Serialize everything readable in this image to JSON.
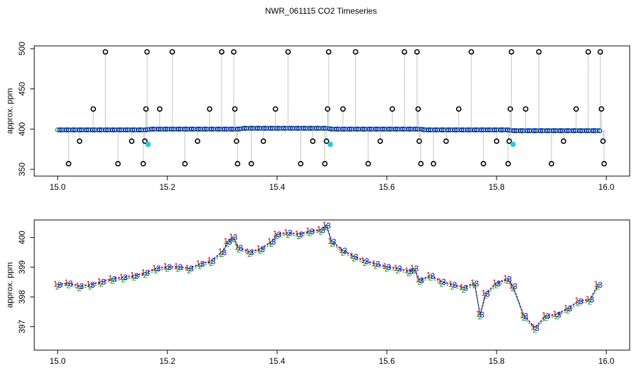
{
  "title": "NWR_061115  CO2 Timeseries",
  "colors": {
    "flag_marker": "#000000",
    "point_blue": "#0000ee",
    "point_green": "#00aa00",
    "point_red": "#cc0000",
    "point_cyan": "#22ccee",
    "connector": "#888888"
  },
  "chart_data": [
    {
      "type": "scatter",
      "ylabel": "approx. ppm",
      "xlim": [
        15.0,
        16.0
      ],
      "ylim": [
        345,
        500
      ],
      "x_ticks": [
        "15.0",
        "15.2",
        "15.4",
        "15.6",
        "15.8",
        "16.0"
      ],
      "y_ticks": [
        "350",
        "400",
        "450",
        "500"
      ],
      "baseline": {
        "x": [
          15.0,
          15.16,
          15.17,
          15.33,
          15.34,
          15.49,
          15.5,
          15.66,
          15.67,
          15.82,
          15.83,
          15.99
        ],
        "y": [
          399,
          399,
          400,
          400,
          401,
          401,
          400,
          400,
          399,
          399,
          398,
          398
        ]
      },
      "flag_points": [
        {
          "x": 15.02,
          "y": 357
        },
        {
          "x": 15.04,
          "y": 385
        },
        {
          "x": 15.065,
          "y": 425
        },
        {
          "x": 15.087,
          "y": 496
        },
        {
          "x": 15.11,
          "y": 357
        },
        {
          "x": 15.135,
          "y": 385
        },
        {
          "x": 15.156,
          "y": 357
        },
        {
          "x": 15.159,
          "y": 385
        },
        {
          "x": 15.161,
          "y": 425
        },
        {
          "x": 15.163,
          "y": 496
        },
        {
          "x": 15.186,
          "y": 425
        },
        {
          "x": 15.209,
          "y": 496
        },
        {
          "x": 15.232,
          "y": 357
        },
        {
          "x": 15.255,
          "y": 385
        },
        {
          "x": 15.277,
          "y": 425
        },
        {
          "x": 15.299,
          "y": 496
        },
        {
          "x": 15.321,
          "y": 496
        },
        {
          "x": 15.323,
          "y": 425
        },
        {
          "x": 15.326,
          "y": 385
        },
        {
          "x": 15.328,
          "y": 357
        },
        {
          "x": 15.353,
          "y": 357
        },
        {
          "x": 15.375,
          "y": 385
        },
        {
          "x": 15.397,
          "y": 425
        },
        {
          "x": 15.42,
          "y": 496
        },
        {
          "x": 15.443,
          "y": 357
        },
        {
          "x": 15.465,
          "y": 385
        },
        {
          "x": 15.487,
          "y": 357
        },
        {
          "x": 15.49,
          "y": 385
        },
        {
          "x": 15.492,
          "y": 425
        },
        {
          "x": 15.494,
          "y": 496
        },
        {
          "x": 15.52,
          "y": 425
        },
        {
          "x": 15.543,
          "y": 496
        },
        {
          "x": 15.566,
          "y": 357
        },
        {
          "x": 15.588,
          "y": 385
        },
        {
          "x": 15.61,
          "y": 425
        },
        {
          "x": 15.632,
          "y": 496
        },
        {
          "x": 15.655,
          "y": 496
        },
        {
          "x": 15.657,
          "y": 425
        },
        {
          "x": 15.659,
          "y": 385
        },
        {
          "x": 15.662,
          "y": 357
        },
        {
          "x": 15.685,
          "y": 357
        },
        {
          "x": 15.708,
          "y": 385
        },
        {
          "x": 15.731,
          "y": 425
        },
        {
          "x": 15.754,
          "y": 496
        },
        {
          "x": 15.776,
          "y": 357
        },
        {
          "x": 15.8,
          "y": 385
        },
        {
          "x": 15.821,
          "y": 357
        },
        {
          "x": 15.823,
          "y": 385
        },
        {
          "x": 15.825,
          "y": 425
        },
        {
          "x": 15.827,
          "y": 496
        },
        {
          "x": 15.853,
          "y": 425
        },
        {
          "x": 15.877,
          "y": 496
        },
        {
          "x": 15.9,
          "y": 357
        },
        {
          "x": 15.922,
          "y": 385
        },
        {
          "x": 15.945,
          "y": 425
        },
        {
          "x": 15.967,
          "y": 496
        },
        {
          "x": 15.989,
          "y": 496
        },
        {
          "x": 15.991,
          "y": 425
        },
        {
          "x": 15.994,
          "y": 385
        },
        {
          "x": 15.996,
          "y": 357
        }
      ],
      "cyan_points": [
        {
          "x": 15.165,
          "y": 381
        },
        {
          "x": 15.497,
          "y": 381
        },
        {
          "x": 15.83,
          "y": 381
        }
      ]
    },
    {
      "type": "line",
      "ylabel": "approx. ppm",
      "xlim": [
        15.0,
        16.0
      ],
      "ylim": [
        396.3,
        400.5
      ],
      "x_ticks": [
        "15.0",
        "15.2",
        "15.4",
        "15.6",
        "15.8",
        "16.0"
      ],
      "y_ticks": [
        "397",
        "398",
        "399",
        "400"
      ],
      "series": [
        {
          "name": "1",
          "color": "#cc0000"
        },
        {
          "name": "2",
          "color": "#00aa00"
        },
        {
          "name": "3",
          "color": "#0000ee"
        }
      ],
      "x": [
        15.0,
        15.02,
        15.04,
        15.06,
        15.08,
        15.1,
        15.12,
        15.14,
        15.16,
        15.18,
        15.2,
        15.22,
        15.24,
        15.26,
        15.28,
        15.3,
        15.31,
        15.32,
        15.33,
        15.35,
        15.37,
        15.39,
        15.4,
        15.42,
        15.44,
        15.46,
        15.48,
        15.49,
        15.5,
        15.52,
        15.54,
        15.56,
        15.58,
        15.6,
        15.62,
        15.64,
        15.65,
        15.66,
        15.68,
        15.7,
        15.72,
        15.74,
        15.76,
        15.77,
        15.78,
        15.8,
        15.82,
        15.83,
        15.85,
        15.87,
        15.89,
        15.91,
        15.93,
        15.95,
        15.97,
        15.985
      ],
      "y": [
        398.4,
        398.45,
        398.35,
        398.4,
        398.5,
        398.6,
        398.65,
        398.7,
        398.8,
        398.95,
        399.0,
        399.0,
        398.95,
        399.1,
        399.2,
        399.5,
        399.85,
        400.0,
        399.65,
        399.5,
        399.6,
        399.85,
        400.1,
        400.15,
        400.1,
        400.2,
        400.25,
        400.4,
        399.85,
        399.55,
        399.35,
        399.2,
        399.1,
        399.0,
        398.95,
        398.85,
        398.95,
        398.55,
        398.7,
        398.5,
        398.4,
        398.3,
        398.45,
        397.4,
        398.1,
        398.45,
        398.6,
        398.35,
        397.35,
        396.95,
        397.35,
        397.4,
        397.6,
        397.85,
        397.9,
        398.4
      ]
    }
  ]
}
